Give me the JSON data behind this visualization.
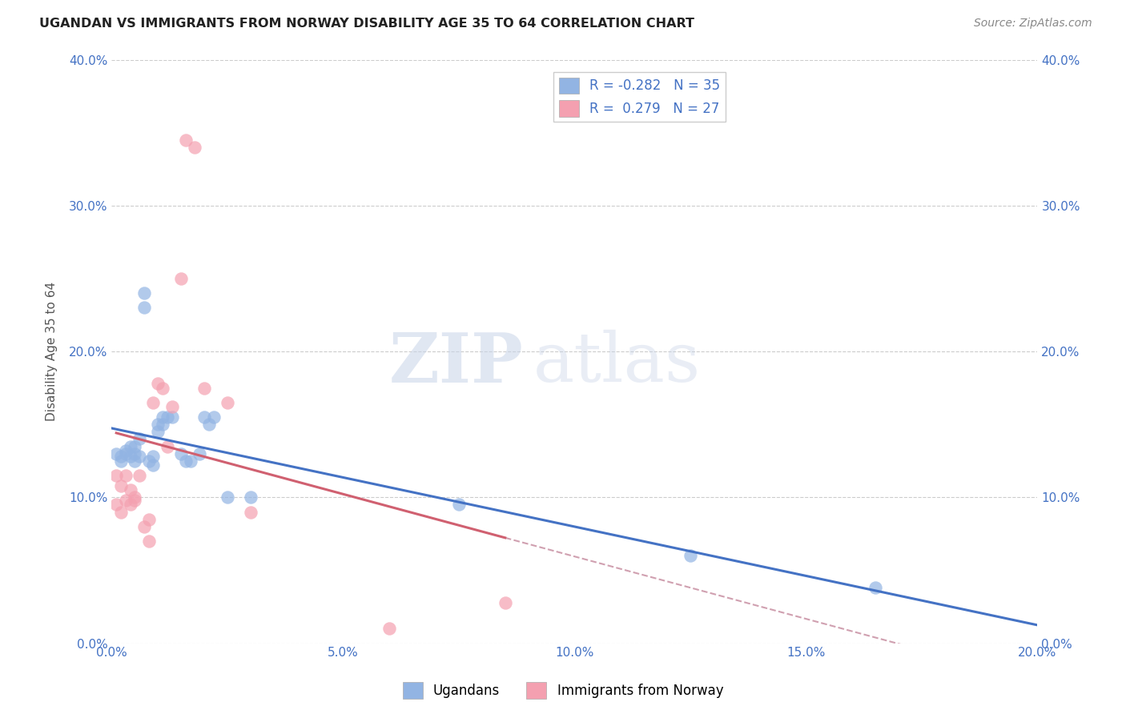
{
  "title": "UGANDAN VS IMMIGRANTS FROM NORWAY DISABILITY AGE 35 TO 64 CORRELATION CHART",
  "source": "Source: ZipAtlas.com",
  "xlabel_ticks": [
    "0.0%",
    "5.0%",
    "10.0%",
    "15.0%",
    "20.0%"
  ],
  "xlabel_vals": [
    0.0,
    0.05,
    0.1,
    0.15,
    0.2
  ],
  "ylabel": "Disability Age 35 to 64",
  "ylabel_ticks": [
    "0.0%",
    "10.0%",
    "20.0%",
    "30.0%",
    "40.0%"
  ],
  "ylabel_vals": [
    0.0,
    0.1,
    0.2,
    0.3,
    0.4
  ],
  "xlim": [
    0.0,
    0.2
  ],
  "ylim": [
    0.0,
    0.4
  ],
  "ugandan_x": [
    0.001,
    0.002,
    0.002,
    0.003,
    0.003,
    0.004,
    0.004,
    0.005,
    0.005,
    0.005,
    0.006,
    0.006,
    0.007,
    0.007,
    0.008,
    0.009,
    0.009,
    0.01,
    0.01,
    0.011,
    0.011,
    0.012,
    0.013,
    0.015,
    0.016,
    0.017,
    0.019,
    0.02,
    0.021,
    0.022,
    0.025,
    0.03,
    0.075,
    0.125,
    0.165
  ],
  "ugandan_y": [
    0.13,
    0.125,
    0.128,
    0.13,
    0.132,
    0.128,
    0.135,
    0.125,
    0.13,
    0.135,
    0.128,
    0.14,
    0.24,
    0.23,
    0.125,
    0.128,
    0.122,
    0.15,
    0.145,
    0.155,
    0.15,
    0.155,
    0.155,
    0.13,
    0.125,
    0.125,
    0.13,
    0.155,
    0.15,
    0.155,
    0.1,
    0.1,
    0.095,
    0.06,
    0.038
  ],
  "norway_x": [
    0.001,
    0.001,
    0.002,
    0.002,
    0.003,
    0.003,
    0.004,
    0.004,
    0.005,
    0.005,
    0.006,
    0.007,
    0.008,
    0.008,
    0.009,
    0.01,
    0.011,
    0.012,
    0.013,
    0.015,
    0.016,
    0.018,
    0.02,
    0.025,
    0.03,
    0.06,
    0.085
  ],
  "norway_y": [
    0.115,
    0.095,
    0.108,
    0.09,
    0.115,
    0.098,
    0.105,
    0.095,
    0.1,
    0.098,
    0.115,
    0.08,
    0.085,
    0.07,
    0.165,
    0.178,
    0.175,
    0.135,
    0.162,
    0.25,
    0.345,
    0.34,
    0.175,
    0.165,
    0.09,
    0.01,
    0.028
  ],
  "ugandan_color": "#92b4e3",
  "norway_color": "#f4a0b0",
  "ugandan_line_color": "#4472c4",
  "norway_line_color": "#d06070",
  "trendline_extension_color": "#d0a0b0",
  "legend_ugandan_r": "-0.282",
  "legend_ugandan_n": "35",
  "legend_norway_r": "0.279",
  "legend_norway_n": "27",
  "watermark_zip": "ZIP",
  "watermark_atlas": "atlas",
  "background_color": "#ffffff",
  "grid_color": "#cccccc"
}
